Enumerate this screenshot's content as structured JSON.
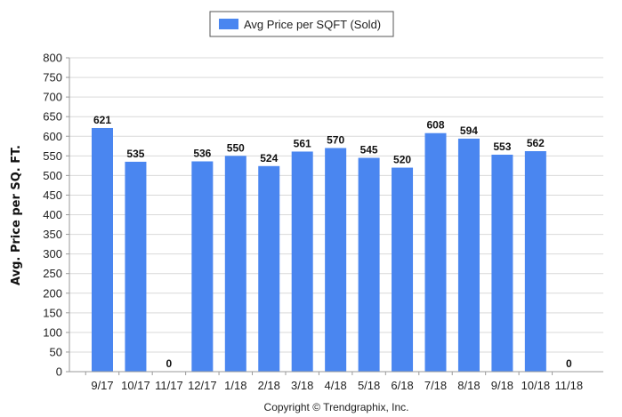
{
  "chart_data": {
    "type": "bar",
    "categories": [
      "9/17",
      "10/17",
      "11/17",
      "12/17",
      "1/18",
      "2/18",
      "3/18",
      "4/18",
      "5/18",
      "6/18",
      "7/18",
      "8/18",
      "9/18",
      "10/18",
      "11/18"
    ],
    "series": [
      {
        "name": "Avg Price per SQFT (Sold)",
        "values": [
          621,
          535,
          0,
          536,
          550,
          524,
          561,
          570,
          545,
          520,
          608,
          594,
          553,
          562,
          0
        ],
        "color": "#4a86f0"
      }
    ],
    "xlabel": "",
    "ylabel": "Avg. Price per SQ. FT.",
    "ylim": [
      0,
      800
    ],
    "yticks": [
      0,
      50,
      100,
      150,
      200,
      250,
      300,
      350,
      400,
      450,
      500,
      550,
      600,
      650,
      700,
      750,
      800
    ],
    "grid": true,
    "legend_position": "top-center"
  },
  "footer": {
    "copyright": "Copyright © Trendgraphix, Inc."
  },
  "colors": {
    "bar": "#4a86f0",
    "grid": "#d9d9d9",
    "axis": "#9a9a9a"
  }
}
